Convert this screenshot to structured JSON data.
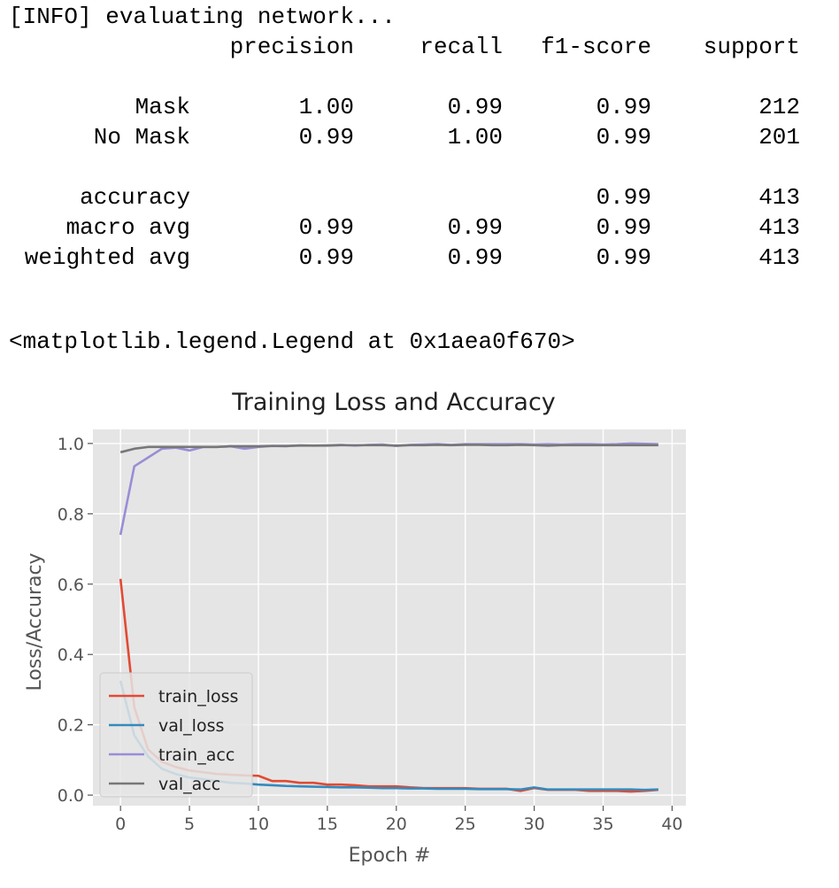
{
  "output": {
    "info_line": "[INFO] evaluating network...",
    "report": {
      "header": [
        "",
        "precision",
        "recall",
        "f1-score",
        "support"
      ],
      "rows": [
        [
          "Mask",
          "1.00",
          "0.99",
          "0.99",
          "212"
        ],
        [
          "No Mask",
          "0.99",
          "1.00",
          "0.99",
          "201"
        ],
        [
          "accuracy",
          "",
          "",
          "0.99",
          "413"
        ],
        [
          "macro avg",
          "0.99",
          "0.99",
          "0.99",
          "413"
        ],
        [
          "weighted avg",
          "0.99",
          "0.99",
          "0.99",
          "413"
        ]
      ]
    },
    "repr_line": "<matplotlib.legend.Legend at 0x1aea0f670>"
  },
  "chart_data": {
    "type": "line",
    "title": "Training Loss and Accuracy",
    "xlabel": "Epoch #",
    "ylabel": "Loss/Accuracy",
    "xlim": [
      -2,
      41
    ],
    "ylim": [
      -0.03,
      1.04
    ],
    "xticks": [
      0,
      5,
      10,
      15,
      20,
      25,
      30,
      35,
      40
    ],
    "yticks": [
      0.0,
      0.2,
      0.4,
      0.6,
      0.8,
      1.0
    ],
    "ytick_labels": [
      "0.0",
      "0.2",
      "0.4",
      "0.6",
      "0.8",
      "1.0"
    ],
    "grid": true,
    "legend_position": "lower-left",
    "x": [
      0,
      1,
      2,
      3,
      4,
      5,
      6,
      7,
      8,
      9,
      10,
      11,
      12,
      13,
      14,
      15,
      16,
      17,
      18,
      19,
      20,
      21,
      22,
      23,
      24,
      25,
      26,
      27,
      28,
      29,
      30,
      31,
      32,
      33,
      34,
      35,
      36,
      37,
      38,
      39
    ],
    "series": [
      {
        "name": "train_loss",
        "color": "#E24A33",
        "values": [
          0.615,
          0.25,
          0.13,
          0.095,
          0.08,
          0.07,
          0.065,
          0.06,
          0.058,
          0.056,
          0.055,
          0.04,
          0.04,
          0.035,
          0.035,
          0.03,
          0.03,
          0.028,
          0.025,
          0.025,
          0.025,
          0.022,
          0.02,
          0.02,
          0.02,
          0.02,
          0.018,
          0.018,
          0.018,
          0.012,
          0.02,
          0.015,
          0.015,
          0.015,
          0.012,
          0.012,
          0.012,
          0.01,
          0.012,
          0.015
        ]
      },
      {
        "name": "val_loss",
        "color": "#348ABD",
        "values": [
          0.325,
          0.17,
          0.11,
          0.075,
          0.06,
          0.05,
          0.045,
          0.04,
          0.035,
          0.033,
          0.03,
          0.028,
          0.026,
          0.025,
          0.024,
          0.023,
          0.022,
          0.022,
          0.021,
          0.02,
          0.02,
          0.019,
          0.019,
          0.018,
          0.018,
          0.018,
          0.017,
          0.017,
          0.017,
          0.016,
          0.022,
          0.016,
          0.016,
          0.016,
          0.016,
          0.016,
          0.016,
          0.016,
          0.015,
          0.016
        ]
      },
      {
        "name": "train_acc",
        "color": "#988ED5",
        "values": [
          0.74,
          0.935,
          0.96,
          0.985,
          0.988,
          0.98,
          0.99,
          0.99,
          0.992,
          0.985,
          0.99,
          0.993,
          0.992,
          0.995,
          0.994,
          0.995,
          0.996,
          0.994,
          0.996,
          0.997,
          0.993,
          0.996,
          0.997,
          0.998,
          0.996,
          0.998,
          0.998,
          0.998,
          0.998,
          0.998,
          0.997,
          0.998,
          0.997,
          0.998,
          0.998,
          0.997,
          0.998,
          1.0,
          0.999,
          0.998
        ]
      },
      {
        "name": "val_acc",
        "color": "#777777",
        "values": [
          0.975,
          0.985,
          0.99,
          0.99,
          0.99,
          0.99,
          0.99,
          0.99,
          0.992,
          0.992,
          0.992,
          0.993,
          0.993,
          0.994,
          0.994,
          0.994,
          0.995,
          0.995,
          0.995,
          0.995,
          0.994,
          0.995,
          0.995,
          0.996,
          0.995,
          0.996,
          0.996,
          0.995,
          0.995,
          0.996,
          0.995,
          0.994,
          0.995,
          0.995,
          0.995,
          0.995,
          0.995,
          0.995,
          0.995,
          0.995
        ]
      }
    ]
  }
}
